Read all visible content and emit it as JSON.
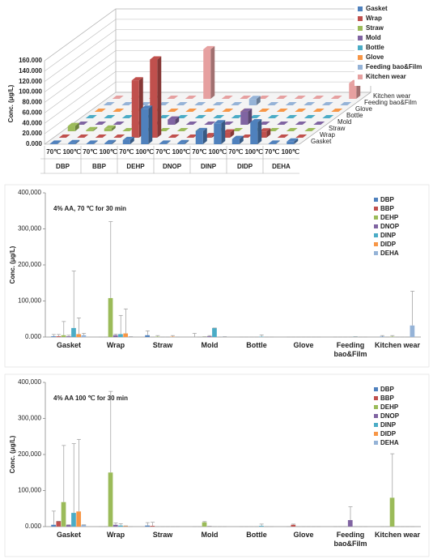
{
  "chart_data": [
    {
      "type": "bar3d",
      "y_label": "Conc. (μg/L)",
      "categories": [
        "70℃",
        "100℃",
        "70℃",
        "100℃",
        "70℃",
        "100℃",
        "70℃",
        "100℃",
        "70℃",
        "100℃",
        "70℃",
        "100℃",
        "70℃",
        "100℃"
      ],
      "groups": [
        "DBP",
        "BBP",
        "DEHP",
        "DNOP",
        "DINP",
        "DIDP",
        "DEHA"
      ],
      "ylim": [
        0,
        160000
      ],
      "yticks": [
        {
          "value": 0,
          "label": "0.000"
        },
        {
          "value": 20000,
          "label": "20.000"
        },
        {
          "value": 40000,
          "label": "40.000"
        },
        {
          "value": 60000,
          "label": "60.000"
        },
        {
          "value": 80000,
          "label": "80.000"
        },
        {
          "value": 100000,
          "label": "100.000"
        },
        {
          "value": 120000,
          "label": "120.000"
        },
        {
          "value": 140000,
          "label": "140.000"
        },
        {
          "value": 160000,
          "label": "160.000"
        }
      ],
      "grid": true,
      "series": [
        {
          "name": "Gasket",
          "color": "#4f81bd",
          "values": [
            1000,
            2000,
            1000,
            2000,
            8000,
            68000,
            1000,
            2000,
            25000,
            40000,
            10000,
            42000,
            1000,
            5000
          ]
        },
        {
          "name": "Wrap",
          "color": "#c0504d",
          "values": [
            0,
            0,
            0,
            0,
            110000,
            150000,
            0,
            0,
            3000,
            10000,
            0,
            12000,
            0,
            0
          ]
        },
        {
          "name": "Straw",
          "color": "#9bbb59",
          "values": [
            10000,
            2000,
            5000,
            0,
            0,
            0,
            0,
            0,
            0,
            0,
            0,
            0,
            0,
            0
          ]
        },
        {
          "name": "Mold",
          "color": "#8064a2",
          "values": [
            0,
            0,
            0,
            0,
            0,
            10000,
            0,
            0,
            0,
            25000,
            0,
            0,
            0,
            0
          ]
        },
        {
          "name": "Bottle",
          "color": "#4bacc6",
          "values": [
            0,
            0,
            0,
            0,
            0,
            0,
            0,
            0,
            0,
            0,
            0,
            0,
            0,
            0
          ]
        },
        {
          "name": "Glove",
          "color": "#f79646",
          "values": [
            0,
            0,
            0,
            0,
            0,
            0,
            0,
            0,
            0,
            0,
            0,
            0,
            0,
            0
          ]
        },
        {
          "name": "Feeding bao&Film",
          "color": "#95b3d7",
          "values": [
            0,
            0,
            0,
            0,
            0,
            0,
            0,
            0,
            12000,
            0,
            0,
            0,
            0,
            0
          ]
        },
        {
          "name": "Kitchen wear",
          "color": "#e6a0a0",
          "values": [
            0,
            0,
            0,
            0,
            0,
            95000,
            0,
            0,
            0,
            0,
            0,
            0,
            0,
            30000
          ]
        }
      ]
    },
    {
      "type": "bar",
      "title": "4% AA, 70 ℃ for 30 min",
      "y_label": "Conc. (μg/L)",
      "categories": [
        "Gasket",
        "Wrap",
        "Straw",
        "Mold",
        "Bottle",
        "Glove",
        "Feeding bao&Film",
        "Kitchen wear"
      ],
      "ylim": [
        0,
        400000
      ],
      "yticks": [
        {
          "value": 0,
          "label": "0.000"
        },
        {
          "value": 100000,
          "label": "100,000"
        },
        {
          "value": 200000,
          "label": "200,000"
        },
        {
          "value": 300000,
          "label": "300,000"
        },
        {
          "value": 400000,
          "label": "400,000"
        }
      ],
      "series": [
        {
          "name": "DBP",
          "color": "#4f81bd",
          "values": [
            2000,
            0,
            5000,
            0,
            0,
            0,
            0,
            1000
          ],
          "errors": [
            5000,
            0,
            12000,
            10000,
            0,
            0,
            0,
            3000
          ]
        },
        {
          "name": "BBP",
          "color": "#c0504d",
          "values": [
            2000,
            0,
            0,
            0,
            0,
            0,
            0,
            0
          ],
          "errors": [
            5000,
            0,
            0,
            0,
            0,
            0,
            0,
            0
          ]
        },
        {
          "name": "DEHP",
          "color": "#9bbb59",
          "values": [
            5000,
            108000,
            1000,
            1000,
            0,
            0,
            0,
            1000
          ],
          "errors": [
            38000,
            212000,
            3000,
            0,
            0,
            0,
            0,
            3000
          ]
        },
        {
          "name": "DNOP",
          "color": "#8064a2",
          "values": [
            2000,
            5000,
            0,
            2000,
            0,
            0,
            0,
            0
          ],
          "errors": [
            3000,
            3000,
            0,
            2000,
            0,
            0,
            0,
            0
          ]
        },
        {
          "name": "DINP",
          "color": "#4bacc6",
          "values": [
            25000,
            8000,
            0,
            25000,
            1000,
            0,
            1000,
            0
          ],
          "errors": [
            158000,
            52000,
            0,
            0,
            5000,
            0,
            0,
            0
          ]
        },
        {
          "name": "DIDP",
          "color": "#f79646",
          "values": [
            8000,
            10000,
            1000,
            0,
            0,
            0,
            0,
            0
          ],
          "errors": [
            45000,
            68000,
            3000,
            0,
            0,
            0,
            0,
            0
          ]
        },
        {
          "name": "DEHA",
          "color": "#95b3d7",
          "values": [
            5000,
            1000,
            0,
            1000,
            0,
            0,
            0,
            32000
          ],
          "errors": [
            5000,
            0,
            0,
            0,
            0,
            0,
            0,
            95000
          ]
        }
      ]
    },
    {
      "type": "bar",
      "title": "4% AA 100 ℃ for 30 min",
      "y_label": "Conc. (μg/L)",
      "categories": [
        "Gasket",
        "Wrap",
        "Straw",
        "Mold",
        "Bottle",
        "Glove",
        "Feeding bao&Film",
        "Kitchen wear"
      ],
      "ylim": [
        0,
        400000
      ],
      "yticks": [
        {
          "value": 0,
          "label": "0.000"
        },
        {
          "value": 100000,
          "label": "100,000"
        },
        {
          "value": 200000,
          "label": "200,000"
        },
        {
          "value": 300000,
          "label": "300,000"
        },
        {
          "value": 400000,
          "label": "400,000"
        }
      ],
      "series": [
        {
          "name": "DBP",
          "color": "#4f81bd",
          "values": [
            5000,
            0,
            3000,
            0,
            0,
            0,
            0,
            0
          ],
          "errors": [
            38000,
            0,
            8000,
            0,
            0,
            0,
            0,
            0
          ]
        },
        {
          "name": "BBP",
          "color": "#c0504d",
          "values": [
            15000,
            0,
            2000,
            0,
            0,
            5000,
            0,
            0
          ],
          "errors": [
            0,
            0,
            10000,
            0,
            0,
            2000,
            0,
            0
          ]
        },
        {
          "name": "DEHP",
          "color": "#9bbb59",
          "values": [
            68000,
            150000,
            0,
            12000,
            0,
            0,
            0,
            80000
          ],
          "errors": [
            157000,
            225000,
            0,
            2000,
            0,
            0,
            0,
            122000
          ]
        },
        {
          "name": "DNOP",
          "color": "#8064a2",
          "values": [
            5000,
            5000,
            0,
            1000,
            0,
            0,
            18000,
            0
          ],
          "errors": [
            0,
            5000,
            0,
            0,
            0,
            0,
            37000,
            0
          ]
        },
        {
          "name": "DINP",
          "color": "#4bacc6",
          "values": [
            38000,
            3000,
            0,
            0,
            2000,
            0,
            0,
            0
          ],
          "errors": [
            192000,
            5000,
            0,
            0,
            5000,
            0,
            0,
            0
          ]
        },
        {
          "name": "DIDP",
          "color": "#f79646",
          "values": [
            42000,
            2000,
            0,
            0,
            0,
            0,
            0,
            0
          ],
          "errors": [
            200000,
            0,
            0,
            0,
            0,
            0,
            0,
            0
          ]
        },
        {
          "name": "DEHA",
          "color": "#95b3d7",
          "values": [
            5000,
            0,
            0,
            0,
            0,
            0,
            0,
            0
          ],
          "errors": [
            0,
            0,
            0,
            0,
            0,
            0,
            0,
            0
          ]
        }
      ]
    }
  ]
}
